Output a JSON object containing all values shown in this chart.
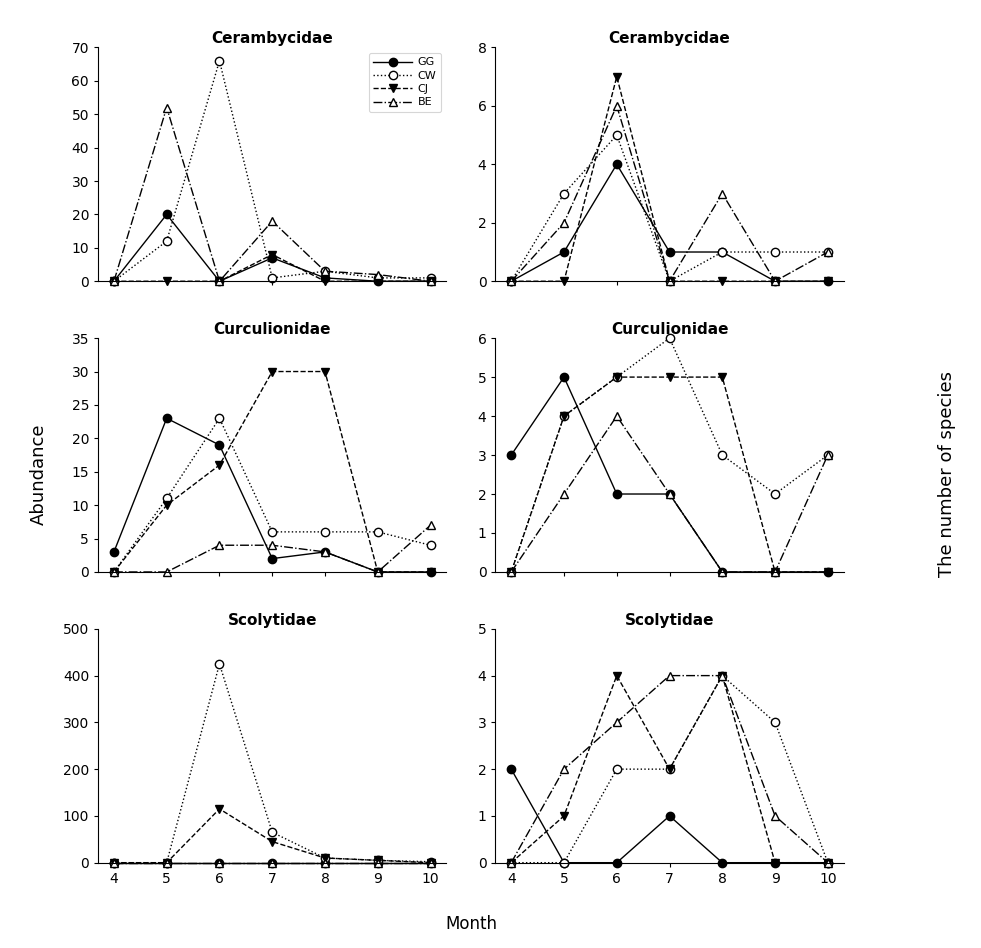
{
  "months": [
    4,
    5,
    6,
    7,
    8,
    9,
    10
  ],
  "families": [
    "Cerambycidae",
    "Curculionidae",
    "Scolytidae"
  ],
  "legend_labels": [
    "GG",
    "CW",
    "CJ",
    "BE"
  ],
  "abundance": {
    "Cerambycidae": {
      "GG": [
        0,
        20,
        0,
        7,
        1,
        0,
        0
      ],
      "CW": [
        0,
        12,
        66,
        1,
        3,
        1,
        1
      ],
      "CJ": [
        0,
        0,
        0,
        8,
        0,
        0,
        0
      ],
      "BE": [
        0,
        52,
        0,
        18,
        3,
        2,
        0
      ]
    },
    "Curculionidae": {
      "GG": [
        3,
        23,
        19,
        2,
        3,
        0,
        0
      ],
      "CW": [
        0,
        11,
        23,
        6,
        6,
        6,
        4
      ],
      "CJ": [
        0,
        10,
        16,
        30,
        30,
        0,
        0
      ],
      "BE": [
        0,
        0,
        4,
        4,
        3,
        0,
        7
      ]
    },
    "Scolytidae": {
      "GG": [
        0,
        0,
        0,
        0,
        0,
        0,
        0
      ],
      "CW": [
        0,
        0,
        425,
        65,
        10,
        5,
        2
      ],
      "CJ": [
        0,
        0,
        115,
        45,
        10,
        5,
        0
      ],
      "BE": [
        0,
        0,
        0,
        0,
        0,
        0,
        0
      ]
    }
  },
  "species": {
    "Cerambycidae": {
      "GG": [
        0,
        1,
        4,
        1,
        1,
        0,
        0
      ],
      "CW": [
        0,
        3,
        5,
        0,
        1,
        1,
        1
      ],
      "CJ": [
        0,
        0,
        7,
        0,
        0,
        0,
        0
      ],
      "BE": [
        0,
        2,
        6,
        0,
        3,
        0,
        1
      ]
    },
    "Curculionidae": {
      "GG": [
        3,
        5,
        2,
        2,
        0,
        0,
        0
      ],
      "CW": [
        0,
        4,
        5,
        6,
        3,
        2,
        3
      ],
      "CJ": [
        0,
        4,
        5,
        5,
        5,
        0,
        0
      ],
      "BE": [
        0,
        2,
        4,
        2,
        0,
        0,
        3
      ]
    },
    "Scolytidae": {
      "GG": [
        2,
        0,
        0,
        1,
        0,
        0,
        0
      ],
      "CW": [
        0,
        0,
        2,
        2,
        4,
        3,
        0
      ],
      "CJ": [
        0,
        1,
        4,
        2,
        4,
        0,
        0
      ],
      "BE": [
        0,
        2,
        3,
        4,
        4,
        1,
        0
      ]
    }
  },
  "ylims_abundance": {
    "Cerambycidae": [
      0,
      70
    ],
    "Curculionidae": [
      0,
      35
    ],
    "Scolytidae": [
      0,
      500
    ]
  },
  "ylims_species": {
    "Cerambycidae": [
      0,
      8
    ],
    "Curculionidae": [
      0,
      6
    ],
    "Scolytidae": [
      0,
      5
    ]
  },
  "yticks_abundance": {
    "Cerambycidae": [
      0,
      10,
      20,
      30,
      40,
      50,
      60,
      70
    ],
    "Curculionidae": [
      0,
      5,
      10,
      15,
      20,
      25,
      30,
      35
    ],
    "Scolytidae": [
      0,
      100,
      200,
      300,
      400,
      500
    ]
  },
  "yticks_species": {
    "Cerambycidae": [
      0,
      2,
      4,
      6,
      8
    ],
    "Curculionidae": [
      0,
      1,
      2,
      3,
      4,
      5,
      6
    ],
    "Scolytidae": [
      0,
      1,
      2,
      3,
      4,
      5
    ]
  }
}
